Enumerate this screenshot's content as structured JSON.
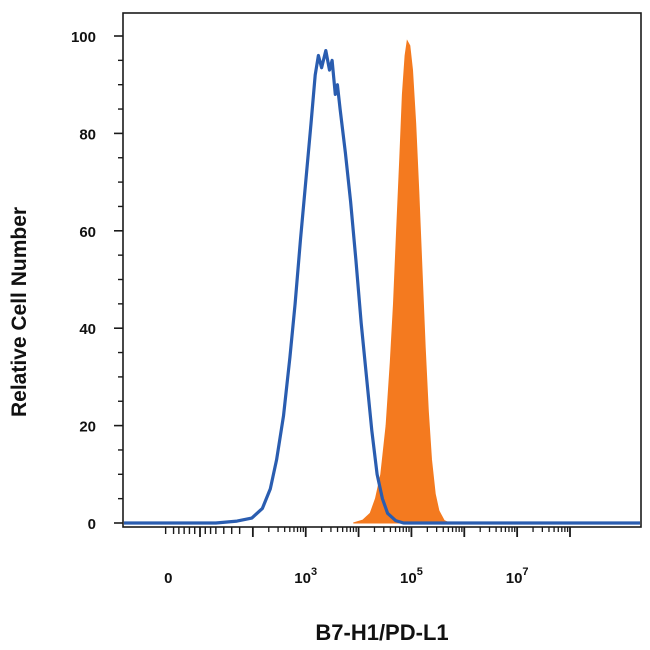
{
  "chart_data": {
    "type": "area",
    "title": "",
    "xlabel": "B7-H1/PD-L1",
    "ylabel": "Relative Cell Number",
    "x_scale": "biexponential",
    "x_tick_labels": [
      {
        "base": "0",
        "exp": ""
      },
      {
        "base": "10",
        "exp": "3"
      },
      {
        "base": "10",
        "exp": "5"
      },
      {
        "base": "10",
        "exp": "7"
      }
    ],
    "y_ticks": [
      0,
      20,
      40,
      60,
      80,
      100
    ],
    "ylim": [
      0,
      100
    ],
    "grid": false,
    "legend": "none",
    "series": [
      {
        "style": "outline",
        "color": "#2a5db0",
        "points": [
          [
            0.3,
            0
          ],
          [
            0.7,
            0.4
          ],
          [
            0.98,
            1
          ],
          [
            1.18,
            3
          ],
          [
            1.33,
            7
          ],
          [
            1.45,
            13
          ],
          [
            1.58,
            22
          ],
          [
            1.7,
            34
          ],
          [
            1.8,
            45
          ],
          [
            1.9,
            58
          ],
          [
            2.0,
            70
          ],
          [
            2.1,
            82
          ],
          [
            2.18,
            92
          ],
          [
            2.24,
            96
          ],
          [
            2.3,
            93.5
          ],
          [
            2.38,
            97
          ],
          [
            2.45,
            93
          ],
          [
            2.5,
            95
          ],
          [
            2.56,
            88
          ],
          [
            2.6,
            90
          ],
          [
            2.65,
            85
          ],
          [
            2.75,
            76
          ],
          [
            2.85,
            66
          ],
          [
            2.95,
            54
          ],
          [
            3.05,
            41
          ],
          [
            3.15,
            30
          ],
          [
            3.25,
            19
          ],
          [
            3.35,
            10
          ],
          [
            3.45,
            5
          ],
          [
            3.55,
            2
          ],
          [
            3.7,
            0.5
          ],
          [
            3.85,
            0
          ],
          [
            6.0,
            0
          ]
        ]
      },
      {
        "style": "filled",
        "color": "#f47a1f",
        "points": [
          [
            2.9,
            0
          ],
          [
            3.08,
            0.6
          ],
          [
            3.22,
            2
          ],
          [
            3.32,
            5
          ],
          [
            3.42,
            10
          ],
          [
            3.52,
            20
          ],
          [
            3.6,
            33
          ],
          [
            3.66,
            45
          ],
          [
            3.72,
            60
          ],
          [
            3.78,
            75
          ],
          [
            3.83,
            88
          ],
          [
            3.88,
            96
          ],
          [
            3.92,
            99
          ],
          [
            3.97,
            98
          ],
          [
            4.02,
            93
          ],
          [
            4.08,
            82
          ],
          [
            4.14,
            68
          ],
          [
            4.2,
            52
          ],
          [
            4.26,
            36
          ],
          [
            4.32,
            23
          ],
          [
            4.38,
            13
          ],
          [
            4.45,
            6
          ],
          [
            4.52,
            2.5
          ],
          [
            4.62,
            0.5
          ],
          [
            4.72,
            0
          ]
        ]
      }
    ]
  }
}
